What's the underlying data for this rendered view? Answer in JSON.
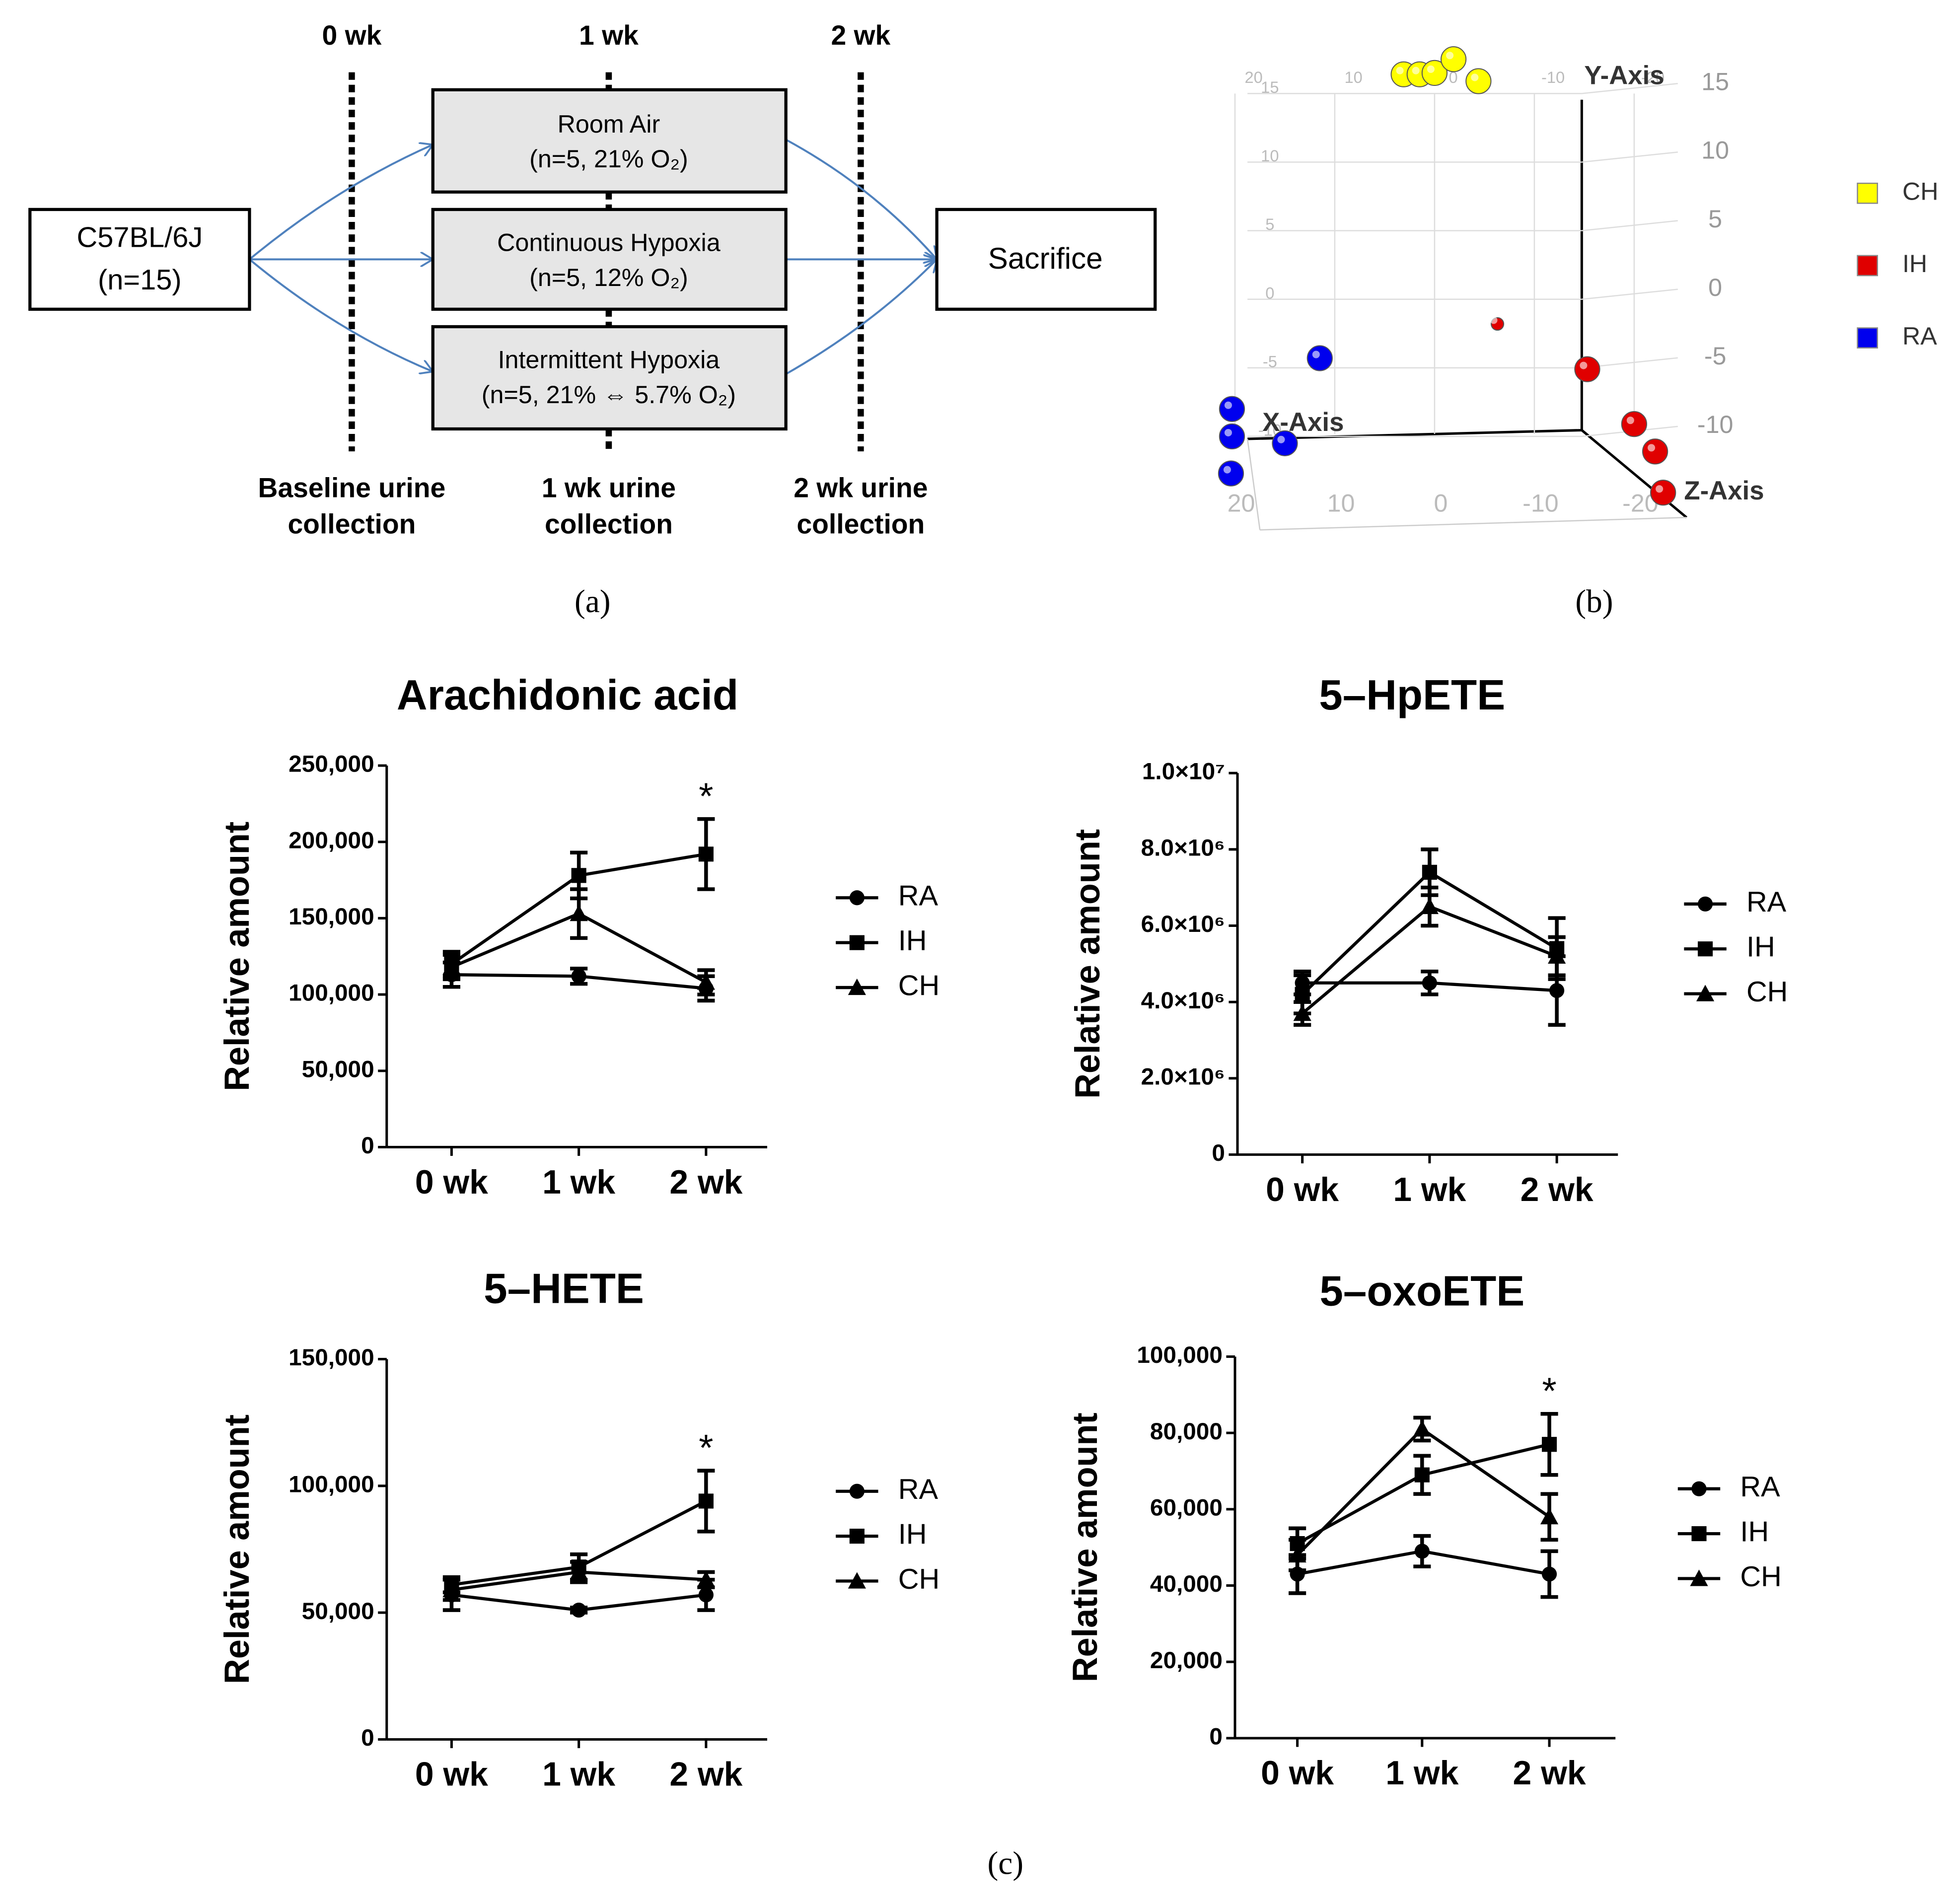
{
  "diagram": {
    "timepoints": [
      "0 wk",
      "1 wk",
      "2 wk"
    ],
    "start": {
      "lines": [
        "C57BL/6J",
        "(n=15)"
      ]
    },
    "groups": [
      {
        "lines": [
          "Room Air",
          "(n=5, 21% O₂)"
        ]
      },
      {
        "lines": [
          "Continuous Hypoxia",
          "(n=5, 12% O₂)"
        ]
      },
      {
        "lines": [
          "Intermittent Hypoxia",
          "(n=5, 21% ⇔ 5.7% O₂)"
        ]
      }
    ],
    "end": {
      "label": "Sacrifice"
    },
    "collections": [
      {
        "lines": [
          "Baseline urine",
          "collection"
        ]
      },
      {
        "lines": [
          "1 wk urine",
          "collection"
        ]
      },
      {
        "lines": [
          "2 wk urine",
          "collection"
        ]
      }
    ]
  },
  "panel_labels": [
    "(a)",
    "(b)",
    "(c)"
  ],
  "scatter3d": {
    "type": "scatter3d",
    "axis_labels": [
      "X-Axis",
      "Y-Axis",
      "Z-Axis"
    ],
    "xticks": [
      20,
      10,
      0,
      -10,
      -20
    ],
    "yticks": [
      15,
      10,
      5,
      0,
      -5,
      -10
    ],
    "series": [
      {
        "name": "CH",
        "color": "#ffff00",
        "x": [
          3.1,
          1.5,
          0,
          -1.9,
          -4.4
        ],
        "y": [
          16.4,
          16.4,
          16.5,
          17.5,
          15.9
        ]
      },
      {
        "name": "IH",
        "color": "#e00000",
        "x": [
          -6.3,
          -15.3,
          -20,
          -22.1,
          -22.9
        ],
        "y": [
          -1.8,
          -5.1,
          -9.1,
          -11.1,
          -14.1
        ]
      },
      {
        "name": "RA",
        "color": "#0000ee",
        "x": [
          11.5,
          20.3,
          20.3,
          15,
          20.4
        ],
        "y": [
          -4.3,
          -8,
          -10,
          -10.5,
          -12.7
        ]
      }
    ]
  },
  "chart_data": [
    {
      "type": "line",
      "title": "Arachidonic acid",
      "y_label": "Relative amount",
      "categories": [
        "0 wk",
        "1 wk",
        "2 wk"
      ],
      "ylim": [
        0,
        250000
      ],
      "yticks": [
        0,
        {
          "value": 50000,
          "label": "50,000"
        },
        {
          "value": 100000,
          "label": "100,000"
        },
        {
          "value": 150000,
          "label": "150,000"
        },
        {
          "value": 200000,
          "label": "200,000"
        },
        {
          "value": 250000,
          "label": "250,000"
        }
      ],
      "series": [
        {
          "name": "RA",
          "marker": "circle",
          "color": "#000000",
          "values": [
            113000,
            112000,
            104000
          ],
          "errors": [
            8000,
            5000,
            8000
          ]
        },
        {
          "name": "IH",
          "marker": "square",
          "color": "#000000",
          "values": [
            120000,
            178000,
            192000
          ],
          "errors": [
            8000,
            15000,
            23000
          ]
        },
        {
          "name": "CH",
          "marker": "triangle",
          "color": "#000000",
          "values": [
            118000,
            153000,
            108000
          ],
          "errors": [
            8000,
            16000,
            8000
          ]
        }
      ],
      "annotations": [
        {
          "text": "*",
          "x": "2 wk"
        }
      ]
    },
    {
      "type": "line",
      "title": "5–HpETE",
      "y_label": "Relative amount",
      "categories": [
        "0 wk",
        "1 wk",
        "2 wk"
      ],
      "ylim": [
        0,
        10000000
      ],
      "yticks": [
        0,
        {
          "value": 2000000,
          "label": "2.0×10⁶"
        },
        {
          "value": 4000000,
          "label": "4.0×10⁶"
        },
        {
          "value": 6000000,
          "label": "6.0×10⁶"
        },
        {
          "value": 8000000,
          "label": "8.0×10⁶"
        },
        {
          "value": 10000000,
          "label": "1.0×10⁷"
        }
      ],
      "series": [
        {
          "name": "RA",
          "marker": "circle",
          "color": "#000000",
          "values": [
            4500000,
            4500000,
            4300000
          ],
          "errors": [
            300000,
            300000,
            900000
          ]
        },
        {
          "name": "IH",
          "marker": "square",
          "color": "#000000",
          "values": [
            4200000,
            7400000,
            5400000
          ],
          "errors": [
            500000,
            600000,
            800000
          ]
        },
        {
          "name": "CH",
          "marker": "triangle",
          "color": "#000000",
          "values": [
            3700000,
            6500000,
            5200000
          ],
          "errors": [
            300000,
            500000,
            500000
          ]
        }
      ],
      "annotations": []
    },
    {
      "type": "line",
      "title": "5–HETE",
      "y_label": "Relative amount",
      "categories": [
        "0 wk",
        "1 wk",
        "2 wk"
      ],
      "ylim": [
        0,
        150000
      ],
      "yticks": [
        0,
        {
          "value": 50000,
          "label": "50,000"
        },
        {
          "value": 100000,
          "label": "100,000"
        },
        {
          "value": 150000,
          "label": "150,000"
        }
      ],
      "series": [
        {
          "name": "RA",
          "marker": "circle",
          "color": "#000000",
          "values": [
            57000,
            51000,
            57000
          ],
          "errors": [
            6000,
            1000,
            6000
          ]
        },
        {
          "name": "IH",
          "marker": "square",
          "color": "#000000",
          "values": [
            61000,
            68000,
            94000
          ],
          "errors": [
            3000,
            5000,
            12000
          ]
        },
        {
          "name": "CH",
          "marker": "triangle",
          "color": "#000000",
          "values": [
            59000,
            66000,
            63000
          ],
          "errors": [
            4000,
            4000,
            3000
          ]
        }
      ],
      "annotations": [
        {
          "text": "*",
          "x": "2 wk"
        }
      ]
    },
    {
      "type": "line",
      "title": "5–oxoETE",
      "y_label": "Relative amount",
      "categories": [
        "0 wk",
        "1 wk",
        "2 wk"
      ],
      "ylim": [
        0,
        100000
      ],
      "yticks": [
        0,
        {
          "value": 20000,
          "label": "20,000"
        },
        {
          "value": 40000,
          "label": "40,000"
        },
        {
          "value": 60000,
          "label": "60,000"
        },
        {
          "value": 80000,
          "label": "80,000"
        },
        {
          "value": 100000,
          "label": "100,000"
        }
      ],
      "series": [
        {
          "name": "RA",
          "marker": "circle",
          "color": "#000000",
          "values": [
            43000,
            49000,
            43000
          ],
          "errors": [
            5000,
            4000,
            6000
          ]
        },
        {
          "name": "IH",
          "marker": "square",
          "color": "#000000",
          "values": [
            51000,
            69000,
            77000
          ],
          "errors": [
            4000,
            5000,
            8000
          ]
        },
        {
          "name": "CH",
          "marker": "triangle",
          "color": "#000000",
          "values": [
            48000,
            81000,
            58000
          ],
          "errors": [
            4000,
            3000,
            6000
          ]
        }
      ],
      "annotations": [
        {
          "text": "*",
          "x": "2 wk"
        }
      ]
    }
  ]
}
